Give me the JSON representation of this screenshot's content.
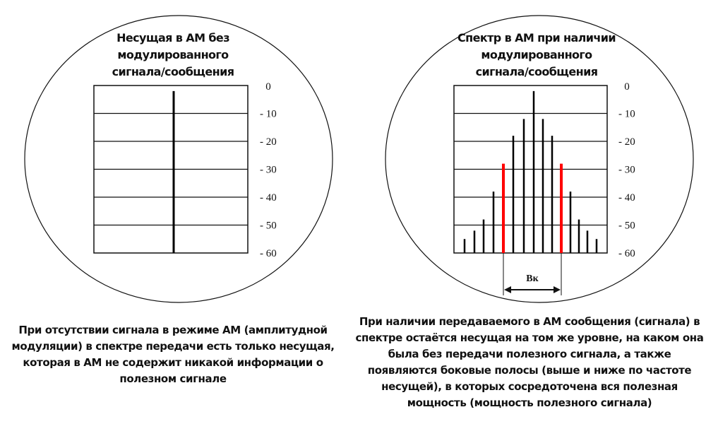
{
  "left_panel": {
    "title": "Несущая в АМ без модулированного сигнала/сообщения",
    "caption": "При отсутствии сигнала в режиме АМ (амплитудной модуляции) в спектре передачи есть только несущая, которая в АМ не содержит никакой информации о полезном сигнале",
    "carrier_level": -2
  },
  "right_panel": {
    "title": "Спектр в АМ при наличии модулированного сигнала/сообщения",
    "caption": "При наличии передаваемого в АМ сообщения (сигнала) в спектре остаётся несущая на том же уровне, на каком она была без передачи полезного сигнала, а также появляются боковые полосы (выше и ниже по частоте несущей), в которых сосредоточена вся полезная мощность (мощность полезного сигнала)",
    "spectral_lines": [
      -55,
      -52,
      -48,
      -38,
      -28,
      -18,
      -12,
      -2,
      -12,
      -18,
      -28,
      -38,
      -48,
      -52,
      -55
    ],
    "highlighted_lines": [
      4,
      10
    ],
    "bandwidth_label": "Bк"
  },
  "scale": {
    "ticks": [
      "0",
      "- 10",
      "- 20",
      "- 30",
      "- 40",
      "- 50",
      "- 60"
    ],
    "min": -60,
    "max": 0
  },
  "colors": {
    "line": "#000000",
    "highlight": "#ff0000"
  }
}
